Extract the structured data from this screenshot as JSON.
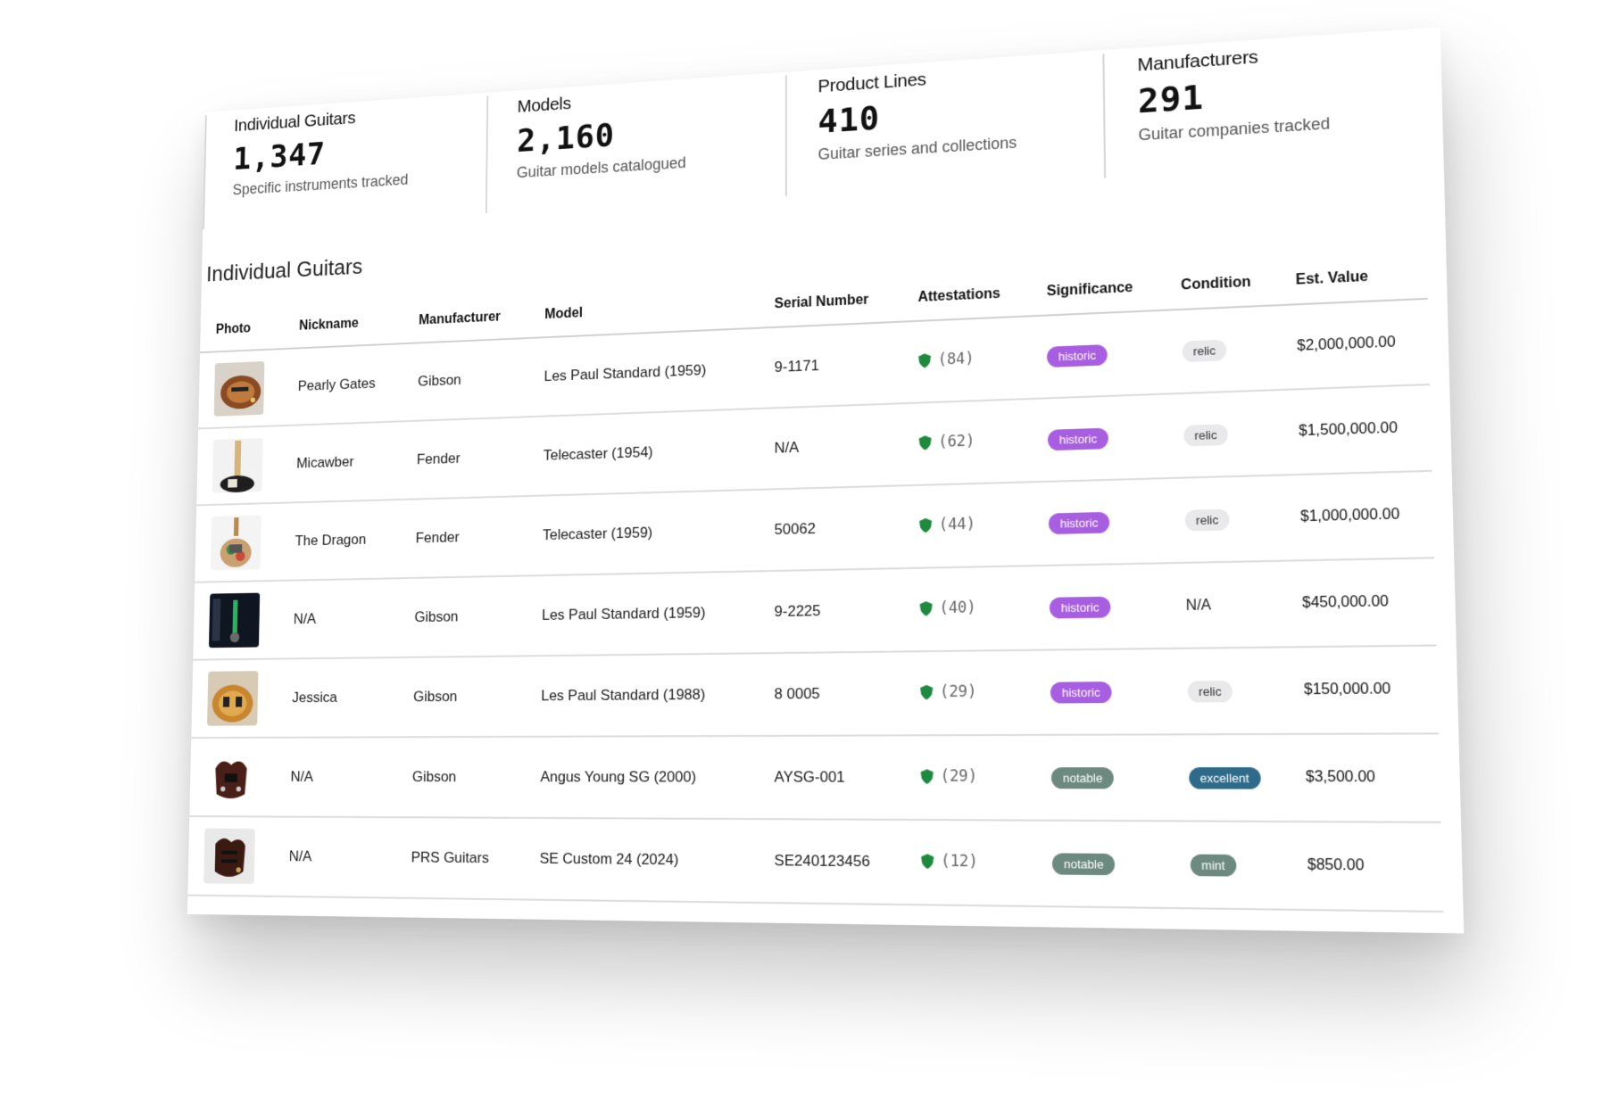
{
  "stats": [
    {
      "label": "Individual Guitars",
      "value": "1,347",
      "desc": "Specific instruments tracked"
    },
    {
      "label": "Models",
      "value": "2,160",
      "desc": "Guitar models catalogued"
    },
    {
      "label": "Product Lines",
      "value": "410",
      "desc": "Guitar series and collections"
    },
    {
      "label": "Manufacturers",
      "value": "291",
      "desc": "Guitar companies tracked"
    }
  ],
  "section_title": "Individual Guitars",
  "columns": [
    "Photo",
    "Nickname",
    "Manufacturer",
    "Model",
    "Serial Number",
    "Attestations",
    "Significance",
    "Condition",
    "Est. Value"
  ],
  "rows": [
    {
      "nickname": "Pearly Gates",
      "manufacturer": "Gibson",
      "model": "Les Paul Standard (1959)",
      "serial": "9-1171",
      "attestations": "(84)",
      "significance": "historic",
      "condition": "relic",
      "value": "$2,000,000.00",
      "photo": "sunburst-les-paul-photo"
    },
    {
      "nickname": "Micawber",
      "manufacturer": "Fender",
      "model": "Telecaster (1954)",
      "serial": "N/A",
      "attestations": "(62)",
      "significance": "historic",
      "condition": "relic",
      "value": "$1,500,000.00",
      "photo": "telecaster-neck-photo"
    },
    {
      "nickname": "The Dragon",
      "manufacturer": "Fender",
      "model": "Telecaster (1959)",
      "serial": "50062",
      "attestations": "(44)",
      "significance": "historic",
      "condition": "relic",
      "value": "$1,000,000.00",
      "photo": "painted-telecaster-photo"
    },
    {
      "nickname": "N/A",
      "manufacturer": "Gibson",
      "model": "Les Paul Standard (1959)",
      "serial": "9-2225",
      "attestations": "(40)",
      "significance": "historic",
      "condition": "N/A",
      "value": "$450,000.00",
      "photo": "dark-stage-guitar-photo"
    },
    {
      "nickname": "Jessica",
      "manufacturer": "Gibson",
      "model": "Les Paul Standard (1988)",
      "serial": "8 0005",
      "attestations": "(29)",
      "significance": "historic",
      "condition": "relic",
      "value": "$150,000.00",
      "photo": "goldtop-les-paul-photo"
    },
    {
      "nickname": "N/A",
      "manufacturer": "Gibson",
      "model": "Angus Young SG (2000)",
      "serial": "AYSG-001",
      "attestations": "(29)",
      "significance": "notable",
      "condition": "excellent",
      "value": "$3,500.00",
      "photo": "red-sg-photo"
    },
    {
      "nickname": "N/A",
      "manufacturer": "PRS Guitars",
      "model": "SE Custom 24 (2024)",
      "serial": "SE240123456",
      "attestations": "(12)",
      "significance": "notable",
      "condition": "mint",
      "value": "$850.00",
      "photo": "prs-custom-photo"
    }
  ],
  "colors": {
    "historic": "#a85ee0",
    "notable": "#6d8a80",
    "relic": "#e9e9ec",
    "excellent": "#2e6b8a",
    "mint": "#6d8a80",
    "shield": "#1e8a3e"
  }
}
